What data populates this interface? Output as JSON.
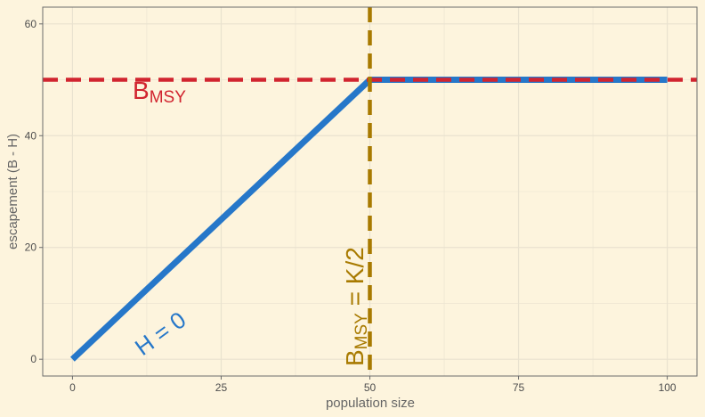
{
  "chart_data": {
    "type": "line",
    "xlabel": "population size",
    "ylabel": "escapement (B - H)",
    "xlim": [
      -5,
      105
    ],
    "ylim": [
      -3,
      63
    ],
    "x_ticks": [
      0,
      25,
      50,
      75,
      100
    ],
    "y_ticks": [
      0,
      20,
      40,
      60
    ],
    "grid": true,
    "series": [
      {
        "values": [
          [
            0,
            0
          ],
          [
            50,
            50
          ],
          [
            100,
            50
          ]
        ],
        "color": "#2677c9"
      }
    ],
    "reference_lines": [
      {
        "orientation": "horizontal",
        "value": 50,
        "color": "#d1242f",
        "style": "dashed"
      },
      {
        "orientation": "vertical",
        "value": 50,
        "color": "#a87a00",
        "style": "dashed"
      }
    ],
    "annotations": [
      {
        "text": "B",
        "subscript": "MSY",
        "color": "#d1242f"
      },
      {
        "text": "B",
        "subscript": "MSY",
        "suffix": " = K/2",
        "color": "#a87a00"
      },
      {
        "text": "H = 0",
        "color": "#2677c9"
      }
    ],
    "colors": {
      "background": "#fdf4dd",
      "grid": "#e9e2cf",
      "axis": "#6b6b6b"
    }
  }
}
